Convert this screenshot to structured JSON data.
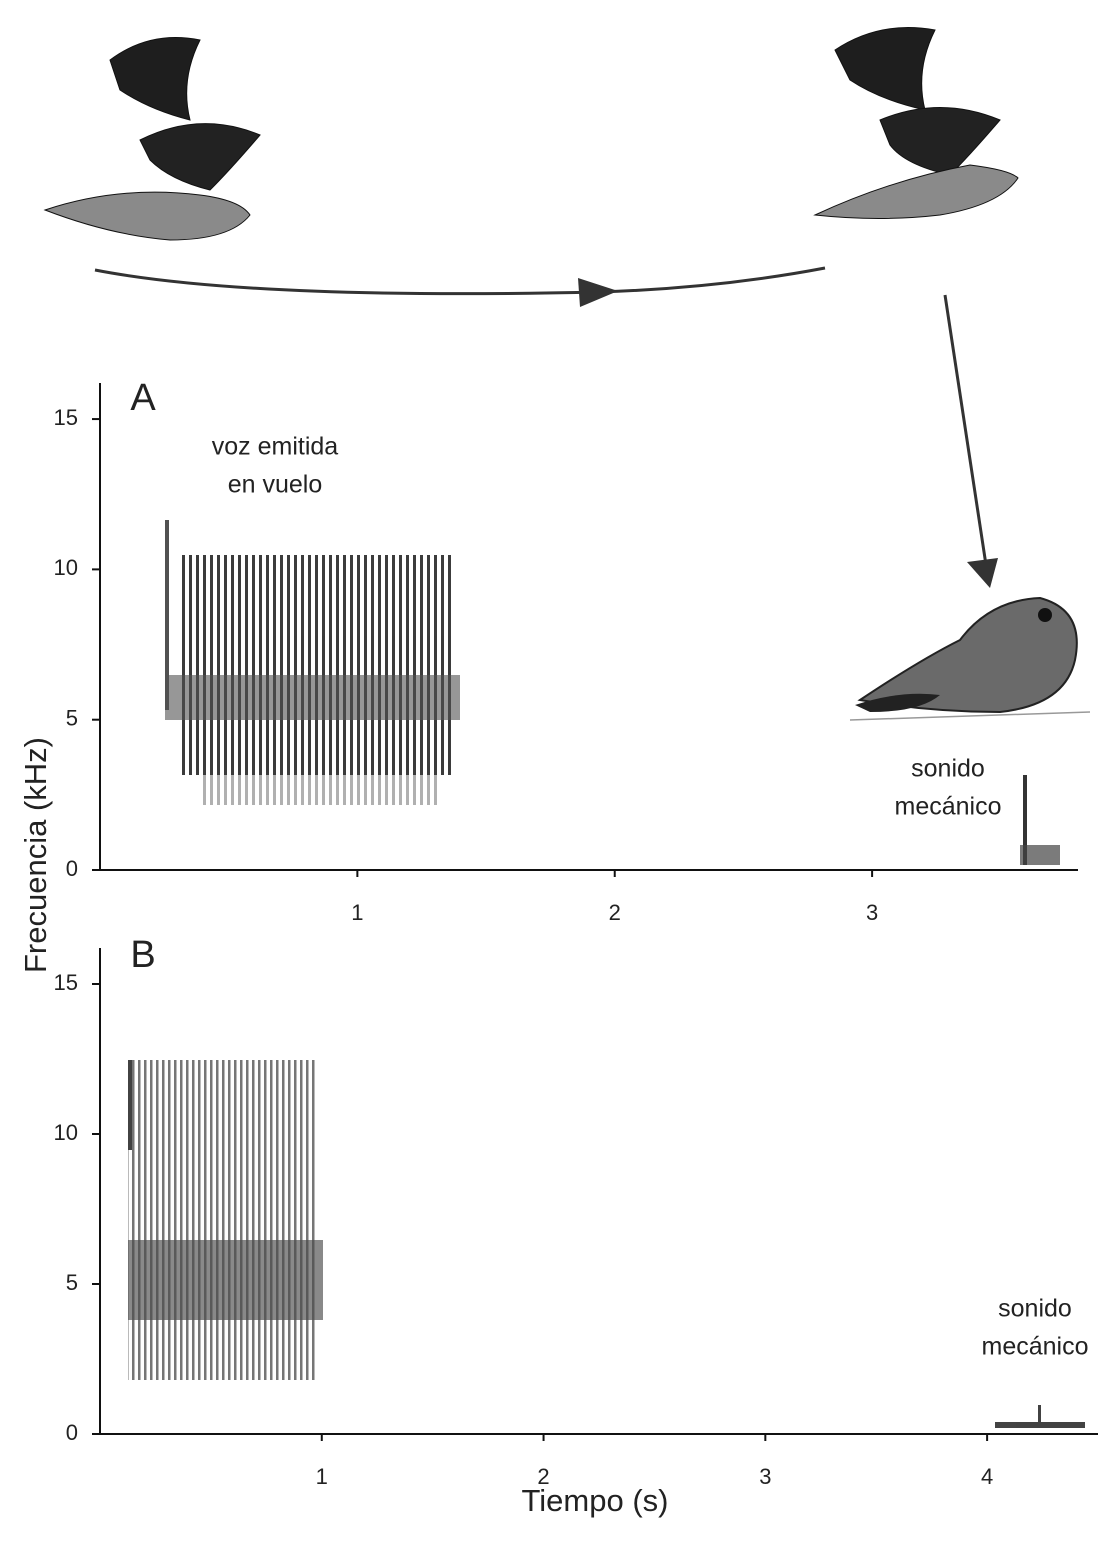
{
  "axis_labels": {
    "y": "Frecuencia (kHz)",
    "x": "Tiempo (s)"
  },
  "chart_data": [
    {
      "type": "spectrogram",
      "panel": "A",
      "xlim": [
        0,
        3.8
      ],
      "ylim": [
        0,
        16.2
      ],
      "xticks": [
        1,
        2,
        3
      ],
      "yticks": [
        0,
        5,
        10,
        15
      ],
      "annotations": [
        [
          "voz emitida",
          "en vuelo"
        ],
        [
          "sonido",
          "mecánico"
        ]
      ]
    },
    {
      "type": "spectrogram",
      "panel": "B",
      "xlim": [
        0,
        4.5
      ],
      "ylim": [
        0,
        16.2
      ],
      "xticks": [
        1,
        2,
        3,
        4
      ],
      "yticks": [
        0,
        5,
        10,
        15
      ],
      "annotations": [
        [
          "sonido",
          "mecánico"
        ]
      ]
    }
  ]
}
